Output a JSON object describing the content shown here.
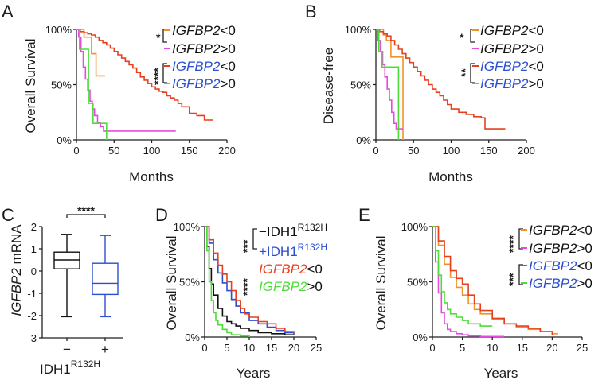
{
  "colors": {
    "orange": "#f0922a",
    "magenta": "#e64be0",
    "red": "#e6401e",
    "green": "#4fdc3a",
    "black": "#111111",
    "blue": "#2c4fd0",
    "dark": "#111111"
  },
  "panels": {
    "A": {
      "letter": "A",
      "ylabel": "Overall Survival",
      "xlabel": "Months",
      "sig": [
        "*",
        "****"
      ],
      "legend": [
        {
          "gene": "IGFBP2",
          "sign": "<0",
          "color": "orange",
          "blue_gene": false
        },
        {
          "gene": "IGFBP2",
          "sign": ">0",
          "color": "magenta",
          "blue_gene": false
        },
        {
          "gene": "IGFBP2",
          "sign": "<0",
          "color": "red",
          "blue_gene": true
        },
        {
          "gene": "IGFBP2",
          "sign": ">0",
          "color": "green",
          "blue_gene": true
        }
      ]
    },
    "B": {
      "letter": "B",
      "ylabel": "Disease-free",
      "xlabel": "Months",
      "sig": [
        "*",
        "**"
      ],
      "legend": [
        {
          "gene": "IGFBP2",
          "sign": "<0",
          "color": "orange",
          "blue_gene": false
        },
        {
          "gene": "IGFBP2",
          "sign": ">0",
          "color": "magenta",
          "blue_gene": false
        },
        {
          "gene": "IGFBP2",
          "sign": "<0",
          "color": "red",
          "blue_gene": true
        },
        {
          "gene": "IGFBP2",
          "sign": ">0",
          "color": "green",
          "blue_gene": true
        }
      ]
    },
    "C": {
      "letter": "C",
      "ylabel_gene": "IGFBP2",
      "ylabel_rest": " mRNA",
      "xlabel_base": "IDH1",
      "xlabel_sup": "R132H",
      "sig": "****"
    },
    "D": {
      "letter": "D",
      "ylabel": "Overall Survival",
      "xlabel": "Years",
      "sig": [
        "***",
        "****"
      ],
      "legend": [
        {
          "pre": "−IDH1",
          "sup": "R132H",
          "color": "black"
        },
        {
          "pre": "+IDH1",
          "sup": "R132H",
          "color": "blue"
        },
        {
          "gene": "IGFBP2",
          "sign": "<0",
          "color": "red"
        },
        {
          "gene": "IGFBP2",
          "sign": ">0",
          "color": "green"
        }
      ]
    },
    "E": {
      "letter": "E",
      "ylabel": "Overall Survival",
      "xlabel": "Years",
      "sig": [
        "****",
        "***"
      ],
      "legend": [
        {
          "gene": "IGFBP2",
          "sign": "<0",
          "color": "orange",
          "blue_gene": false
        },
        {
          "gene": "IGFBP2",
          "sign": ">0",
          "color": "magenta",
          "blue_gene": false
        },
        {
          "gene": "IGFBP2",
          "sign": "<0",
          "color": "red",
          "blue_gene": true
        },
        {
          "gene": "IGFBP2",
          "sign": ">0",
          "color": "green",
          "blue_gene": true
        }
      ]
    }
  },
  "chart_data": [
    {
      "id": "A",
      "type": "line",
      "title": "",
      "xlabel": "Months",
      "ylabel": "Overall Survival",
      "xlim": [
        0,
        200
      ],
      "ylim": [
        0,
        100
      ],
      "xticks": [
        "0",
        "50",
        "100",
        "150",
        "200"
      ],
      "yticks": [
        "0%",
        "50%",
        "100%"
      ],
      "series": [
        {
          "name": "IGFBP2<0 (orange)",
          "color": "orange",
          "x": [
            0,
            8,
            10,
            16,
            20,
            22,
            26,
            30,
            38
          ],
          "y": [
            100,
            100,
            93,
            93,
            78,
            78,
            58,
            58,
            58
          ]
        },
        {
          "name": "IGFBP2>0 (magenta)",
          "color": "magenta",
          "x": [
            0,
            3,
            6,
            9,
            12,
            15,
            18,
            21,
            24,
            28,
            32,
            36,
            132
          ],
          "y": [
            100,
            93,
            80,
            66,
            55,
            45,
            35,
            28,
            22,
            16,
            12,
            8,
            8
          ]
        },
        {
          "name": "IGFBP2<0 (red)",
          "color": "red",
          "x": [
            0,
            5,
            10,
            15,
            20,
            25,
            30,
            35,
            40,
            45,
            50,
            55,
            60,
            65,
            70,
            75,
            80,
            85,
            90,
            95,
            100,
            105,
            110,
            115,
            120,
            125,
            130,
            135,
            140,
            150,
            160,
            170,
            182
          ],
          "y": [
            100,
            98,
            97,
            96,
            95,
            93,
            90,
            88,
            86,
            83,
            80,
            77,
            74,
            71,
            68,
            65,
            61,
            57,
            54,
            51,
            48,
            46,
            44,
            43,
            40,
            38,
            36,
            33,
            30,
            24,
            22,
            18,
            18
          ]
        },
        {
          "name": "IGFBP2>0 (green)",
          "color": "green",
          "x": [
            0,
            4,
            10,
            16,
            22,
            38,
            40
          ],
          "y": [
            100,
            82,
            82,
            33,
            15,
            15,
            0
          ]
        }
      ]
    },
    {
      "id": "B",
      "type": "line",
      "title": "",
      "xlabel": "Months",
      "ylabel": "Disease-free",
      "xlim": [
        0,
        200
      ],
      "ylim": [
        0,
        100
      ],
      "xticks": [
        "0",
        "50",
        "100",
        "150",
        "200"
      ],
      "yticks": [
        "0%",
        "50%",
        "100%"
      ],
      "series": [
        {
          "name": "IGFBP2<0 (orange)",
          "color": "orange",
          "x": [
            0,
            6,
            10,
            14,
            20,
            34,
            36
          ],
          "y": [
            100,
            100,
            95,
            90,
            75,
            75,
            0
          ]
        },
        {
          "name": "IGFBP2>0 (magenta)",
          "color": "magenta",
          "x": [
            0,
            3,
            6,
            9,
            12,
            15,
            18,
            21,
            24,
            27,
            30,
            36
          ],
          "y": [
            100,
            90,
            80,
            68,
            57,
            46,
            36,
            25,
            15,
            10,
            10,
            10
          ]
        },
        {
          "name": "IGFBP2<0 (red)",
          "color": "red",
          "x": [
            0,
            5,
            10,
            15,
            20,
            25,
            30,
            35,
            40,
            45,
            50,
            55,
            60,
            65,
            70,
            75,
            80,
            85,
            90,
            95,
            100,
            110,
            120,
            130,
            140,
            145,
            172
          ],
          "y": [
            100,
            98,
            96,
            94,
            90,
            86,
            82,
            78,
            74,
            70,
            66,
            62,
            58,
            54,
            50,
            46,
            43,
            40,
            36,
            32,
            28,
            25,
            23,
            21,
            20,
            10,
            10
          ]
        },
        {
          "name": "IGFBP2>0 (green)",
          "color": "green",
          "x": [
            0,
            4,
            8,
            16,
            28,
            30
          ],
          "y": [
            100,
            80,
            66,
            66,
            66,
            0
          ]
        }
      ]
    },
    {
      "id": "C",
      "type": "box",
      "xlabel": "IDH1 R132H",
      "ylabel": "IGFBP2 mRNA",
      "ylim": [
        -3,
        2
      ],
      "yticks": [
        "-3",
        "-2",
        "-1",
        "0",
        "1",
        "2"
      ],
      "categories": [
        "−",
        "+"
      ],
      "boxes": [
        {
          "category": "−",
          "color": "black",
          "whisker_low": -2.05,
          "q1": 0.1,
          "median": 0.5,
          "q3": 0.85,
          "whisker_high": 1.65
        },
        {
          "category": "+",
          "color": "blue",
          "whisker_low": -2.05,
          "q1": -1.05,
          "median": -0.55,
          "q3": 0.35,
          "whisker_high": 1.6
        }
      ]
    },
    {
      "id": "D",
      "type": "line",
      "title": "",
      "xlabel": "Years",
      "ylabel": "Overall Survival",
      "xlim": [
        0,
        25
      ],
      "ylim": [
        0,
        100
      ],
      "xticks": [
        "0",
        "5",
        "10",
        "15",
        "20",
        "25"
      ],
      "yticks": [
        "0%",
        "50%",
        "100%"
      ],
      "series": [
        {
          "name": "−IDH1 R132H (black)",
          "color": "black",
          "x": [
            0,
            0.5,
            1,
            1.5,
            2,
            3,
            4,
            5,
            6,
            7,
            8,
            10,
            12,
            15,
            18,
            20
          ],
          "y": [
            100,
            82,
            62,
            48,
            38,
            26,
            19,
            14,
            12,
            10,
            8,
            6,
            4,
            3,
            2,
            2
          ]
        },
        {
          "name": "+IDH1 R132H (blue)",
          "color": "blue",
          "x": [
            0,
            1,
            2,
            3,
            4,
            5,
            6,
            7,
            8,
            10,
            12,
            14,
            16,
            18,
            20
          ],
          "y": [
            100,
            85,
            70,
            58,
            49,
            42,
            34,
            28,
            22,
            15,
            12,
            9,
            6,
            4,
            2
          ]
        },
        {
          "name": "IGFBP2<0 (red)",
          "color": "red",
          "x": [
            0,
            1,
            2,
            3,
            4,
            5,
            6,
            7,
            8,
            9,
            10,
            12,
            14,
            16,
            18,
            20
          ],
          "y": [
            100,
            88,
            76,
            65,
            57,
            50,
            42,
            33,
            26,
            21,
            18,
            14,
            12,
            8,
            5,
            3
          ]
        },
        {
          "name": "IGFBP2>0 (green)",
          "color": "green",
          "x": [
            0,
            0.5,
            1,
            1.5,
            2,
            2.5,
            3,
            4,
            5,
            6,
            8,
            10
          ],
          "y": [
            100,
            78,
            50,
            33,
            22,
            15,
            11,
            7,
            4,
            2,
            1,
            0
          ]
        }
      ]
    },
    {
      "id": "E",
      "type": "line",
      "title": "",
      "xlabel": "Years",
      "ylabel": "Overall Survival",
      "xlim": [
        0,
        25
      ],
      "ylim": [
        0,
        100
      ],
      "xticks": [
        "0",
        "5",
        "10",
        "15",
        "20",
        "25"
      ],
      "yticks": [
        "0%",
        "50%",
        "100%"
      ],
      "series": [
        {
          "name": "IGFBP2<0 (orange)",
          "color": "orange",
          "x": [
            0,
            1,
            2,
            3,
            4,
            5,
            6,
            7,
            8,
            10,
            12,
            14,
            16,
            18,
            20,
            21
          ],
          "y": [
            100,
            83,
            66,
            54,
            45,
            38,
            30,
            25,
            21,
            16,
            12,
            9,
            7,
            5,
            3,
            3
          ]
        },
        {
          "name": "IGFBP2>0 (magenta)",
          "color": "magenta",
          "x": [
            0,
            0.5,
            1,
            1.5,
            2,
            2.5,
            3,
            4,
            5,
            6,
            8,
            10,
            12
          ],
          "y": [
            100,
            68,
            40,
            22,
            12,
            7,
            5,
            3,
            2,
            1,
            0.5,
            0.5,
            0.5
          ]
        },
        {
          "name": "IGFBP2<0 (red)",
          "color": "red",
          "x": [
            0,
            1,
            2,
            3,
            4,
            5,
            6,
            7,
            8,
            10,
            12,
            14,
            16,
            18,
            20
          ],
          "y": [
            100,
            87,
            73,
            60,
            53,
            48,
            38,
            30,
            24,
            17,
            12,
            10,
            8,
            5,
            2
          ]
        },
        {
          "name": "IGFBP2>0 (green)",
          "color": "green",
          "x": [
            0,
            0.5,
            1,
            1.5,
            2,
            2.5,
            3,
            4,
            5,
            6,
            8,
            10
          ],
          "y": [
            100,
            78,
            56,
            41,
            31,
            25,
            21,
            18,
            15,
            12,
            10,
            10
          ]
        }
      ]
    }
  ]
}
